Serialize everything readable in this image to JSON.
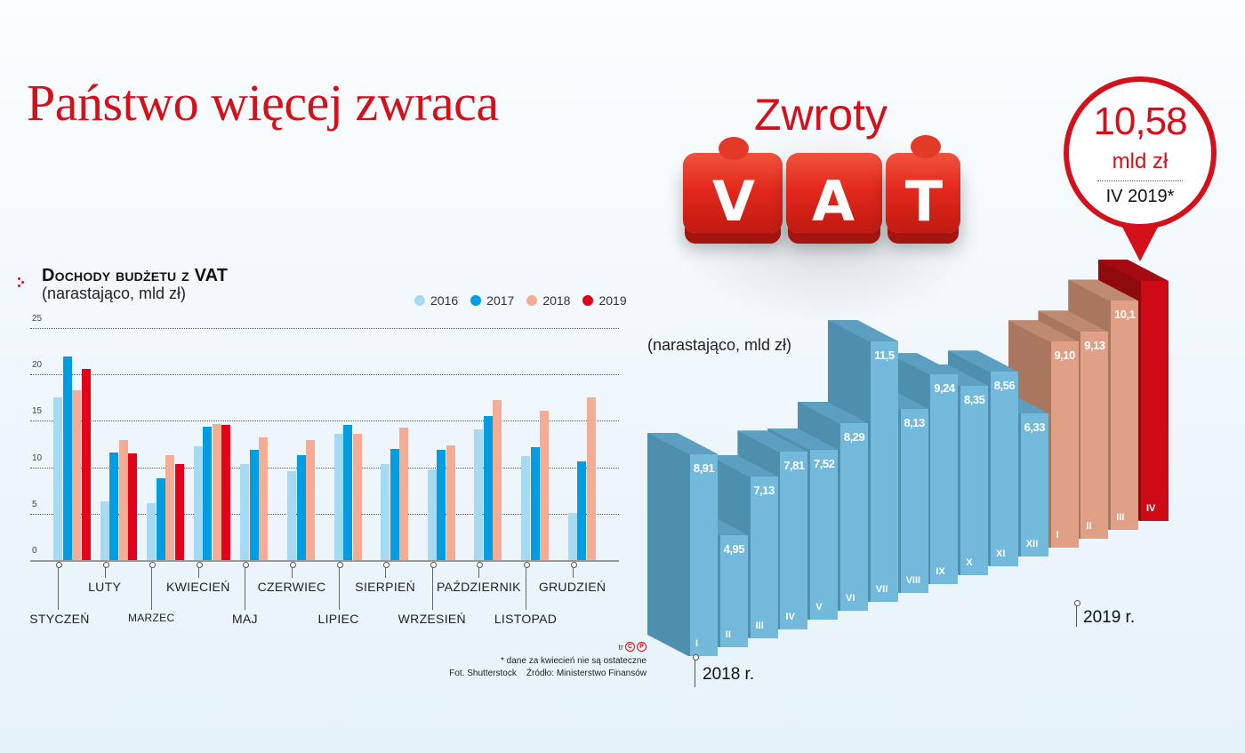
{
  "header": {
    "title": "Państwo więcej zwraca"
  },
  "left_chart": {
    "title": "Dochody budżetu z VAT",
    "subtitle": "(narastająco, mld zł)",
    "legend": [
      {
        "label": "2016",
        "color": "#a6d9f2"
      },
      {
        "label": "2017",
        "color": "#009ee0"
      },
      {
        "label": "2018",
        "color": "#f4ad94"
      },
      {
        "label": "2019",
        "color": "#e2001a"
      }
    ],
    "y_ticks": [
      "0",
      "5",
      "10",
      "15",
      "20",
      "25"
    ],
    "months": [
      "STYCZEŃ",
      "LUTY",
      "MARZEC",
      "KWIECIEŃ",
      "MAJ",
      "CZERWIEC",
      "LIPIEC",
      "SIERPIEŃ",
      "WRZESIEŃ",
      "PAŹDZIERNIK",
      "LISTOPAD",
      "GRUDZIEŃ"
    ]
  },
  "right_chart": {
    "heading": "Zwroty",
    "puzzle_letters": [
      "V",
      "A",
      "T"
    ],
    "subtitle": "(narastająco, mld zł)",
    "highlight": {
      "value": "10,58",
      "unit": "mld zł",
      "period": "IV 2019*"
    },
    "year_labels": [
      "2018 r.",
      "2019 r."
    ]
  },
  "footer": {
    "credit_initials": "tr",
    "credit_symbols": [
      "C",
      "P"
    ],
    "note": "* dane za kwiecień nie są ostateczne",
    "source": "Fot. Shutterstock    Źródło: Ministerstwo Finansów"
  },
  "colors": {
    "brand_red": "#d4101b",
    "blue_2018": "#72b9dc",
    "salmon_2019": "#e0a086",
    "red_latest": "#cf0a17"
  },
  "chart_data": [
    {
      "type": "bar",
      "title": "Dochody budżetu z VAT",
      "subtitle": "(narastająco, mld zł)",
      "xlabel": "",
      "ylabel": "mld zł",
      "ylim": [
        0,
        25
      ],
      "grid": true,
      "legend_position": "top-right",
      "categories": [
        "Styczeń",
        "Luty",
        "Marzec",
        "Kwiecień",
        "Maj",
        "Czerwiec",
        "Lipiec",
        "Sierpień",
        "Wrzesień",
        "Październik",
        "Listopad",
        "Grudzień"
      ],
      "series": [
        {
          "name": "2016",
          "color": "#a6d9f2",
          "values": [
            17.5,
            6.3,
            6.1,
            12.3,
            10.3,
            9.6,
            13.6,
            10.3,
            9.8,
            14.1,
            11.2,
            5.1
          ]
        },
        {
          "name": "2017",
          "color": "#009ee0",
          "values": [
            21.9,
            11.6,
            8.8,
            14.4,
            11.9,
            11.3,
            14.6,
            12.0,
            11.9,
            15.5,
            12.2,
            10.6
          ]
        },
        {
          "name": "2018",
          "color": "#f4ad94",
          "values": [
            18.3,
            12.9,
            11.3,
            14.7,
            13.2,
            12.9,
            13.6,
            14.3,
            12.4,
            17.2,
            16.1,
            17.5
          ]
        },
        {
          "name": "2019",
          "color": "#e2001a",
          "values": [
            20.6,
            11.5,
            10.3,
            14.6,
            null,
            null,
            null,
            null,
            null,
            null,
            null,
            null
          ]
        }
      ]
    },
    {
      "type": "bar",
      "title": "Zwroty VAT",
      "subtitle": "(narastająco, mld zł)",
      "xlabel": "",
      "ylabel": "mld zł",
      "grid": false,
      "categories": [
        "I 2018",
        "II 2018",
        "III 2018",
        "IV 2018",
        "V 2018",
        "VI 2018",
        "VII 2018",
        "VIII 2018",
        "IX 2018",
        "X 2018",
        "XI 2018",
        "XII 2018",
        "I 2019",
        "II 2019",
        "III 2019",
        "IV 2019"
      ],
      "month_labels": [
        "I",
        "II",
        "III",
        "IV",
        "V",
        "VI",
        "VII",
        "VIII",
        "IX",
        "X",
        "XI",
        "XII",
        "I",
        "II",
        "III",
        "IV"
      ],
      "values": [
        8.91,
        4.95,
        7.13,
        7.81,
        7.52,
        8.29,
        11.5,
        8.13,
        9.24,
        8.35,
        8.56,
        6.33,
        9.1,
        9.13,
        10.1,
        10.58
      ],
      "value_labels": [
        "8,91",
        "4,95",
        "7,13",
        "7,81",
        "7,52",
        "8,29",
        "11,5",
        "8,13",
        "9,24",
        "8,35",
        "8,56",
        "6,33",
        "9,10",
        "9,13",
        "10,1",
        ""
      ],
      "groups": [
        {
          "year": "2018 r.",
          "range": [
            0,
            11
          ],
          "color": "#72b9dc"
        },
        {
          "year": "2019 r.",
          "range": [
            12,
            14
          ],
          "color": "#e0a086"
        },
        {
          "year": "2019 r.",
          "range": [
            15,
            15
          ],
          "color": "#cf0a17",
          "note": "IV 2019* — 10,58 mld zł (dane nie są ostateczne)"
        }
      ]
    }
  ]
}
